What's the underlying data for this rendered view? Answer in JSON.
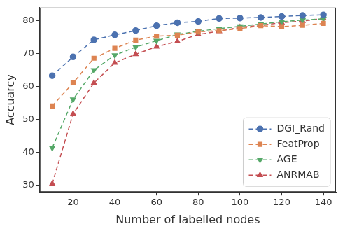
{
  "chart_data": {
    "type": "line",
    "x_label": "Number of labelled nodes",
    "y_label": "Accuarcy",
    "x": [
      10,
      20,
      30,
      40,
      50,
      60,
      70,
      80,
      90,
      100,
      110,
      120,
      130,
      140
    ],
    "series": [
      {
        "name": "DGI_Rand",
        "color": "#4c72b0",
        "marker": "circle",
        "line_style": "dashed",
        "values": [
          63.3,
          69.0,
          74.2,
          75.7,
          77.0,
          78.5,
          79.4,
          79.8,
          80.7,
          80.8,
          81.0,
          81.3,
          81.6,
          81.8
        ]
      },
      {
        "name": "FeatProp",
        "color": "#dd8452",
        "marker": "square",
        "line_style": "dashed",
        "values": [
          54.1,
          61.1,
          68.6,
          71.6,
          74.1,
          75.3,
          75.6,
          76.6,
          77.0,
          77.6,
          78.5,
          78.2,
          78.6,
          79.2
        ]
      },
      {
        "name": "AGE",
        "color": "#55a868",
        "marker": "triangle_down",
        "line_style": "dashed",
        "values": [
          41.4,
          56.1,
          65.0,
          69.5,
          72.0,
          73.9,
          75.8,
          76.8,
          77.6,
          78.3,
          79.0,
          79.7,
          80.2,
          80.6
        ]
      },
      {
        "name": "ANRMAB",
        "color": "#c44e52",
        "marker": "triangle_up",
        "line_style": "dashed",
        "values": [
          30.5,
          51.7,
          61.1,
          67.2,
          69.8,
          72.1,
          73.7,
          75.8,
          76.8,
          78.0,
          78.6,
          79.4,
          79.9,
          80.7
        ]
      }
    ],
    "xlim": [
      4,
      146
    ],
    "ylim": [
      28,
      84
    ],
    "xticks": [
      20,
      40,
      60,
      80,
      100,
      120,
      140
    ],
    "yticks": [
      30,
      40,
      50,
      60,
      70,
      80
    ],
    "grid": false,
    "legend": "lower right"
  }
}
